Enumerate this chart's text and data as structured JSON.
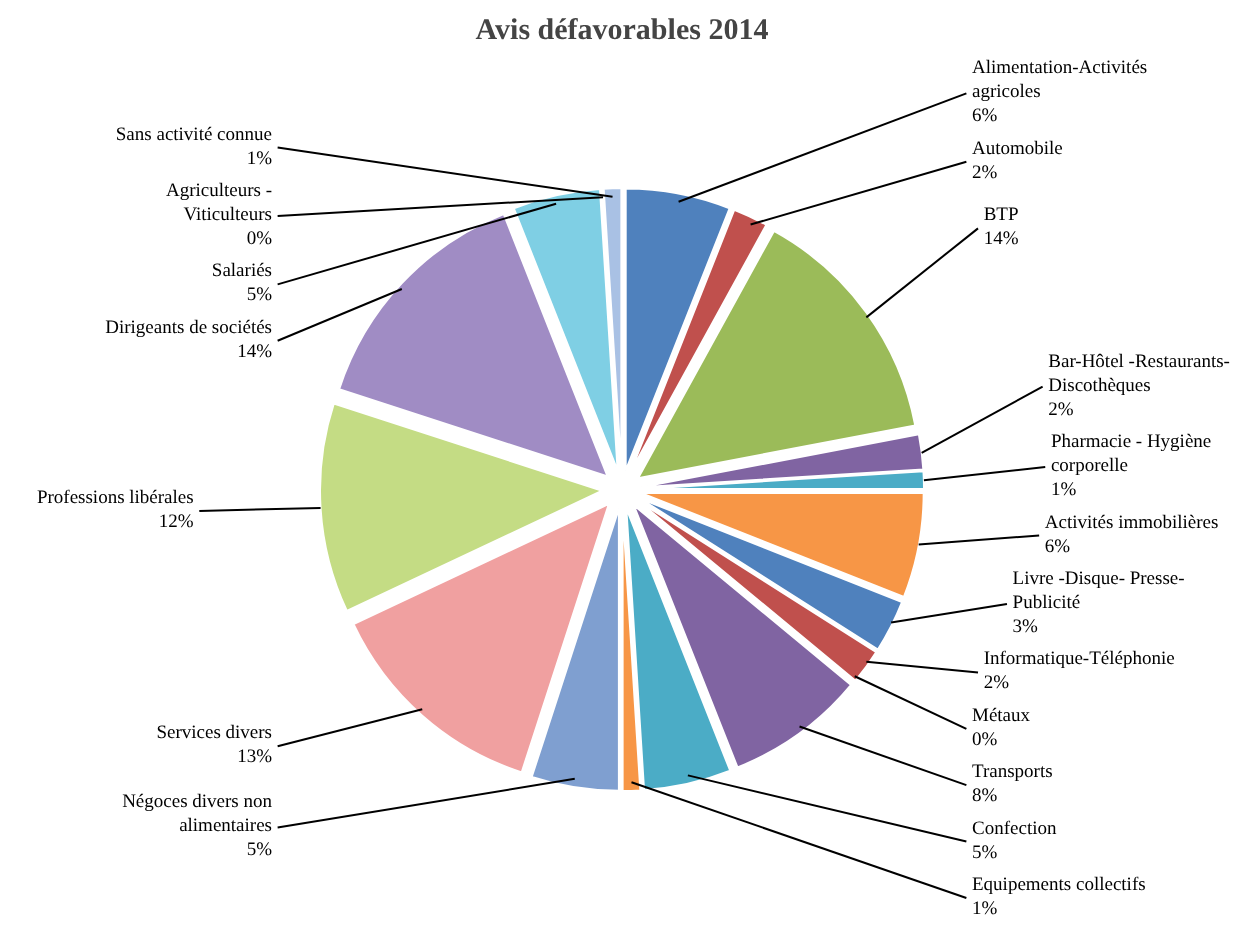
{
  "chart_data": {
    "type": "pie",
    "title": "Avis défavorables 2014",
    "categories": [
      "Alimentation-Activités agricoles",
      "Automobile",
      "BTP",
      "Bar-Hôtel -Restaurants-Discothèques",
      "Pharmacie - Hygiène corporelle",
      "Activités immobilières",
      "Livre -Disque- Presse-Publicité",
      "Informatique-Téléphonie",
      "Métaux",
      "Transports",
      "Confection",
      "Equipements collectifs",
      "Négoces divers non alimentaires",
      "Services divers",
      "Professions libérales",
      "Dirigeants de sociétés",
      "Salariés",
      "Agriculteurs - Viticulteurs",
      "Sans activité connue"
    ],
    "values": [
      6,
      2,
      14,
      2,
      1,
      6,
      3,
      2,
      0,
      8,
      5,
      1,
      5,
      13,
      12,
      14,
      5,
      0,
      1
    ],
    "value_labels": [
      "6%",
      "2%",
      "14%",
      "2%",
      "1%",
      "6%",
      "3%",
      "2%",
      "0%",
      "8%",
      "5%",
      "1%",
      "5%",
      "13%",
      "12%",
      "14%",
      "5%",
      "0%",
      "1%"
    ],
    "colors": [
      "#4f81bd",
      "#c0504d",
      "#9bbb59",
      "#8064a2",
      "#4bacc6",
      "#f79646",
      "#4f81bd",
      "#c0504d",
      "#9bbb59",
      "#8064a2",
      "#4bacc6",
      "#f79646",
      "#7f9fd0",
      "#f0a0a0",
      "#c4dc84",
      "#a08cc4",
      "#7fcfe4",
      "#f9b87c",
      "#a9c1e4"
    ]
  }
}
